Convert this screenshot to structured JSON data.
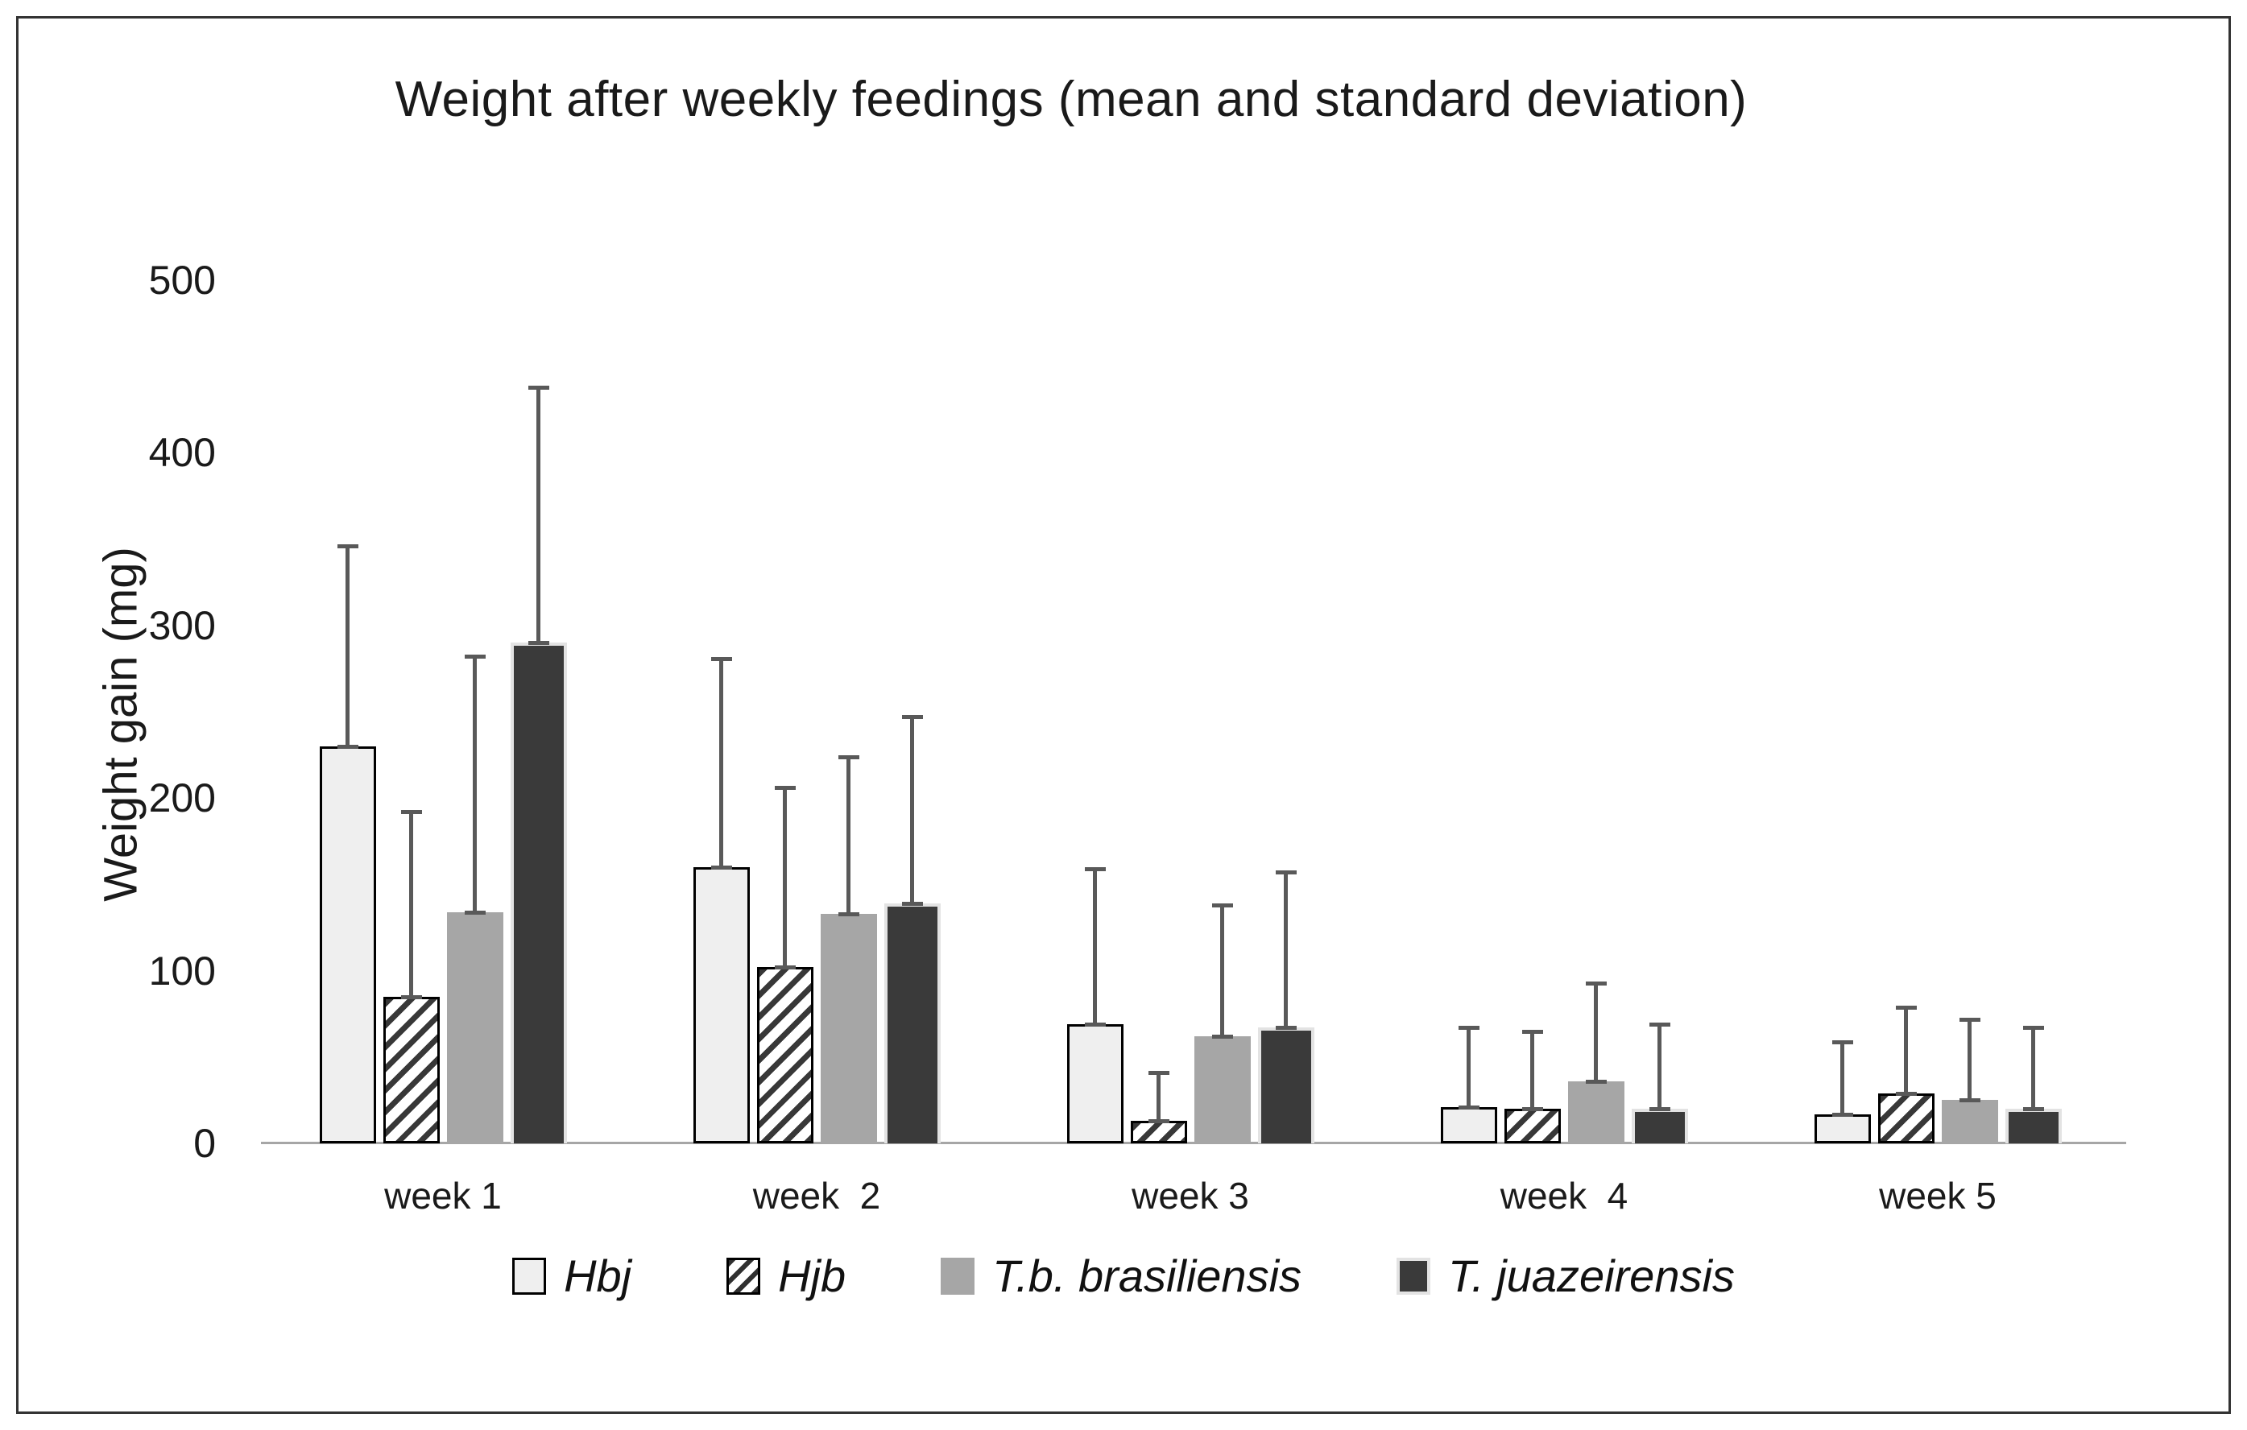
{
  "chart_data": {
    "type": "bar",
    "title": "Weight after weekly feedings (mean and standard deviation)",
    "ylabel": "Weight gain (mg)",
    "xlabel": "",
    "ylim": [
      0,
      500
    ],
    "yticks": [
      0,
      100,
      200,
      300,
      400,
      500
    ],
    "grid": false,
    "legend_position": "bottom",
    "error_bars": "plus_one_standard_deviation",
    "categories": [
      "week 1",
      "week  2",
      "week 3",
      "week  4",
      "week 5"
    ],
    "series": [
      {
        "name": "Hbj",
        "style": "light",
        "fill": "#efefef",
        "border": "#000000",
        "values": [
          230,
          160,
          69,
          21,
          17
        ],
        "stdev": [
          116,
          121,
          90,
          46,
          42
        ]
      },
      {
        "name": "Hjb",
        "style": "hatched",
        "fill": "#ffffff",
        "hatch_color": "#383838",
        "border": "#000000",
        "values": [
          85,
          102,
          13,
          20,
          29
        ],
        "stdev": [
          107,
          104,
          28,
          45,
          50
        ]
      },
      {
        "name": "T.b. brasiliensis",
        "style": "gray",
        "fill": "#a6a6a6",
        "values": [
          134,
          133,
          62,
          36,
          25
        ],
        "stdev": [
          148,
          91,
          76,
          57,
          47
        ]
      },
      {
        "name": "T. juazeirensis",
        "style": "dark",
        "fill": "#3a3a3a",
        "halo": "#e3e3e3",
        "values": [
          290,
          139,
          67,
          20,
          20
        ],
        "stdev": [
          148,
          108,
          90,
          49,
          47
        ]
      }
    ],
    "colors": {
      "error_bar": "#595959",
      "axis_line": "#a6a6a6",
      "frame_border": "#333333",
      "text": "#1a1a1a"
    }
  }
}
